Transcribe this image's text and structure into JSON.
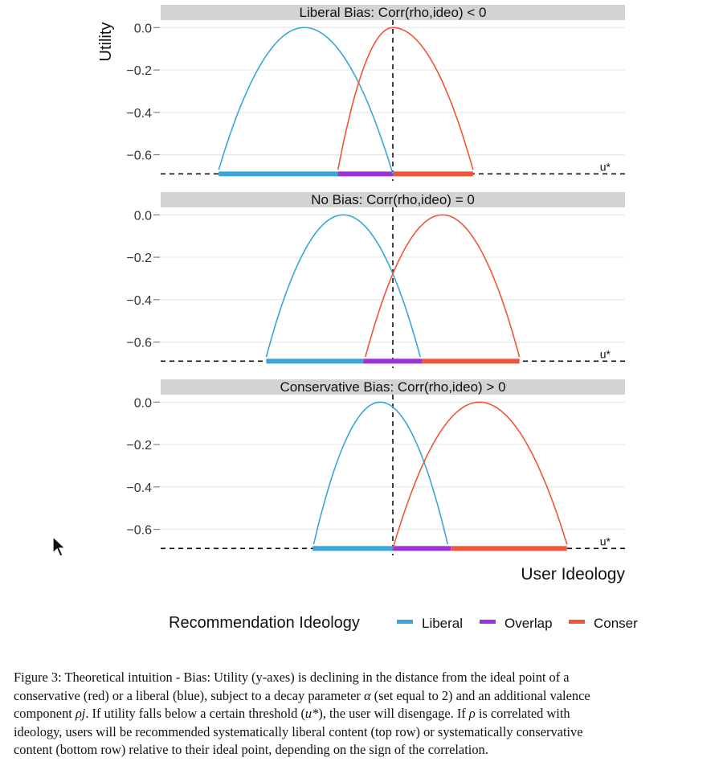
{
  "chart_data": {
    "type": "line",
    "ylabel": "Utility",
    "xlabel": "User Ideology",
    "y_ticks": [
      "0.0",
      "−0.2",
      "−0.4",
      "−0.6"
    ],
    "ylim": [
      -0.7,
      0.02
    ],
    "xlim": [
      -2.2,
      2.2
    ],
    "grid": true,
    "threshold_label": "u*",
    "threshold_value": -0.69,
    "user_ideal_point": 0,
    "legend": {
      "title": "Recommendation Ideology",
      "position": "bottom",
      "items": [
        {
          "label": "Liberal",
          "color": "#3aa6d8"
        },
        {
          "label": "Overlap",
          "color": "#9b34d6"
        },
        {
          "label": "Conser",
          "color": "#f0553a"
        }
      ]
    },
    "panels": [
      {
        "title": "Liberal Bias: Corr(rho,ideo) < 0",
        "series": [
          {
            "name": "Liberal",
            "color": "#3aa6d8",
            "peak_x": -0.84,
            "x": [
              -1.65,
              -1.2,
              -0.84,
              -0.45,
              0.0
            ],
            "y": [
              -0.67,
              -0.16,
              0.0,
              -0.16,
              -0.69
            ]
          },
          {
            "name": "Conser",
            "color": "#f0553a",
            "peak_x": 0.0,
            "x": [
              -0.52,
              -0.3,
              0.0,
              0.45,
              0.76
            ],
            "y": [
              -0.67,
              -0.2,
              0.0,
              -0.2,
              -0.67
            ]
          }
        ],
        "bars": [
          {
            "name": "Liberal",
            "from": -1.65,
            "to": -0.52
          },
          {
            "name": "Overlap",
            "from": -0.52,
            "to": 0.0
          },
          {
            "name": "Conser",
            "from": 0.0,
            "to": 0.76
          }
        ]
      },
      {
        "title": "No Bias: Corr(rho,ideo) = 0",
        "series": [
          {
            "name": "Liberal",
            "color": "#3aa6d8",
            "peak_x": -0.47,
            "x": [
              -1.2,
              -0.8,
              -0.47,
              -0.1,
              0.26
            ],
            "y": [
              -0.67,
              -0.16,
              0.0,
              -0.2,
              -0.67
            ]
          },
          {
            "name": "Conser",
            "color": "#f0553a",
            "peak_x": 0.47,
            "x": [
              -0.26,
              0.1,
              0.47,
              0.85,
              1.2
            ],
            "y": [
              -0.67,
              -0.2,
              0.0,
              -0.2,
              -0.67
            ]
          }
        ],
        "bars": [
          {
            "name": "Liberal",
            "from": -1.2,
            "to": -0.28
          },
          {
            "name": "Overlap",
            "from": -0.28,
            "to": 0.28
          },
          {
            "name": "Conser",
            "from": 0.28,
            "to": 1.2
          }
        ]
      },
      {
        "title": "Conservative Bias: Corr(rho,ideo) > 0",
        "series": [
          {
            "name": "Liberal",
            "color": "#3aa6d8",
            "peak_x": -0.12,
            "x": [
              -0.75,
              -0.4,
              -0.12,
              0.2,
              0.52
            ],
            "y": [
              -0.67,
              -0.16,
              0.0,
              -0.2,
              -0.67
            ]
          },
          {
            "name": "Conser",
            "color": "#f0553a",
            "peak_x": 0.82,
            "x": [
              0.0,
              0.4,
              0.82,
              1.2,
              1.65
            ],
            "y": [
              -0.69,
              -0.2,
              0.0,
              -0.16,
              -0.67
            ]
          }
        ],
        "bars": [
          {
            "name": "Liberal",
            "from": -0.76,
            "to": 0.0
          },
          {
            "name": "Overlap",
            "from": 0.0,
            "to": 0.55
          },
          {
            "name": "Conser",
            "from": 0.55,
            "to": 1.65
          }
        ]
      }
    ]
  },
  "caption": {
    "line1": "Figure 3: Theoretical intuition - Bias: Utility (y-axes) is declining in the distance from the ideal point of a",
    "line2_a": "conservative (red) or a liberal (blue), subject to a decay parameter ",
    "alpha": "α",
    "line2_b": " (set equal to 2) and an additional valence",
    "line3_a": "component ",
    "rho_j": "ρj",
    "line3_b": ". If utility falls below a certain threshold (",
    "u_star": "u*",
    "line3_c": "), the user will disengage. If ",
    "rho": "ρ",
    "line3_d": " is correlated with",
    "line4": "ideology, users will be recommended systematically liberal content (top row) or systematically conservative",
    "line5": "content (bottom row) relative to their ideal point, depending on the sign of the correlation."
  }
}
